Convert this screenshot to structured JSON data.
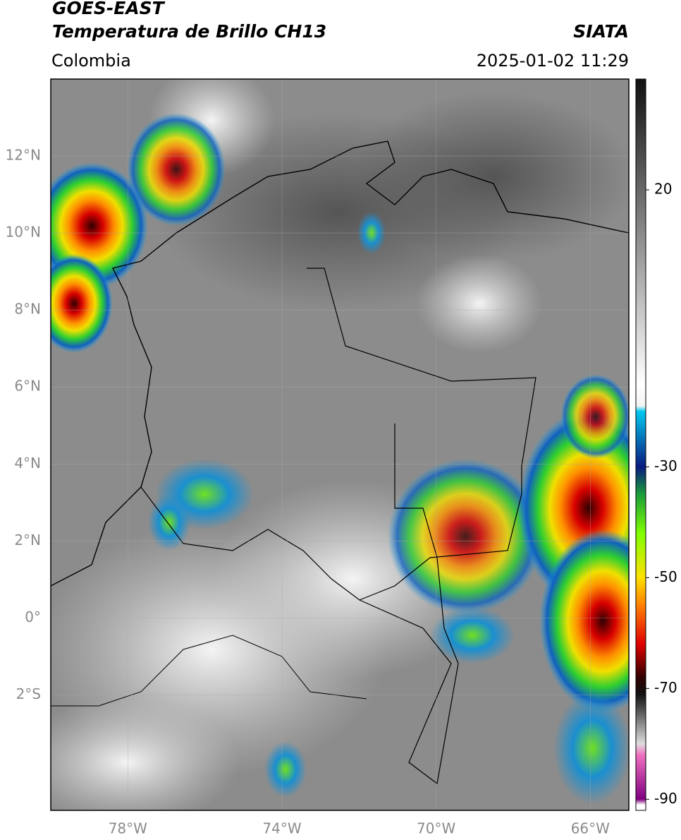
{
  "header": {
    "title": "GOES-EAST",
    "subtitle": "Temperatura de Brillo CH13",
    "source": "SIATA",
    "region": "Colombia",
    "timestamp": "2025-01-02 11:29"
  },
  "map": {
    "xlim": [
      -80,
      -65
    ],
    "ylim": [
      -5,
      14
    ],
    "grid": true,
    "xticks": [
      {
        "value": -78,
        "label": "78°W"
      },
      {
        "value": -74,
        "label": "74°W"
      },
      {
        "value": -70,
        "label": "70°W"
      },
      {
        "value": -66,
        "label": "66°W"
      }
    ],
    "yticks": [
      {
        "value": 12,
        "label": "12°N"
      },
      {
        "value": 10,
        "label": "10°N"
      },
      {
        "value": 8,
        "label": "8°N"
      },
      {
        "value": 6,
        "label": "6°N"
      },
      {
        "value": 4,
        "label": "4°N"
      },
      {
        "value": 2,
        "label": "2°N"
      },
      {
        "value": 0,
        "label": "0°"
      },
      {
        "value": -2,
        "label": "2°S"
      }
    ]
  },
  "colorbar": {
    "lim": [
      -92,
      40
    ],
    "ticks": [
      20,
      -30,
      -50,
      -70,
      -90
    ],
    "stops": [
      {
        "value": 40,
        "color": "#111111"
      },
      {
        "value": -15,
        "color": "#ffffff"
      },
      {
        "value": -19,
        "color": "#f4f4f4"
      },
      {
        "value": -20,
        "color": "#00c8f0"
      },
      {
        "value": -30,
        "color": "#0a1a80"
      },
      {
        "value": -35,
        "color": "#1a9e3a"
      },
      {
        "value": -42,
        "color": "#7fff00"
      },
      {
        "value": -50,
        "color": "#ffe000"
      },
      {
        "value": -55,
        "color": "#ff8000"
      },
      {
        "value": -62,
        "color": "#e00000"
      },
      {
        "value": -68,
        "color": "#300000"
      },
      {
        "value": -71,
        "color": "#111111"
      },
      {
        "value": -80,
        "color": "#dddddd"
      },
      {
        "value": -82,
        "color": "#f070c0"
      },
      {
        "value": -90,
        "color": "#800080"
      },
      {
        "value": -91,
        "color": "#ffffff"
      }
    ]
  }
}
